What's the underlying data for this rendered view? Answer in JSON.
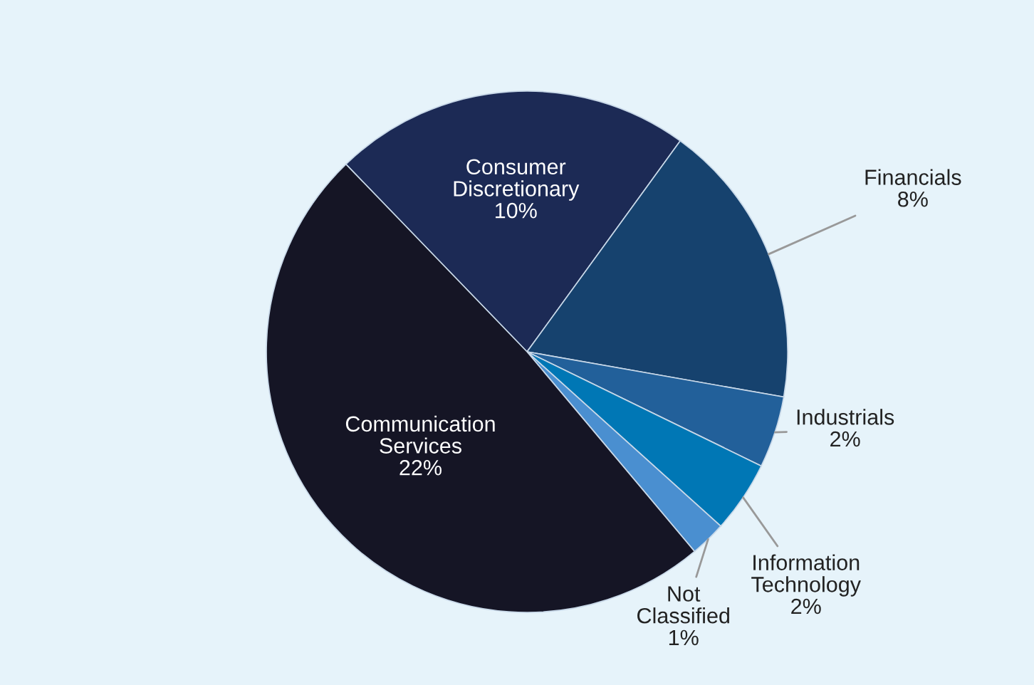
{
  "chart_data": {
    "type": "pie",
    "categories": [
      "Consumer\nDiscretionary",
      "Financials",
      "Industrials",
      "Information\nTechnology",
      "Not\nClassified",
      "Communication\nServices"
    ],
    "values": [
      10,
      8,
      2,
      2,
      1,
      22
    ],
    "value_labels": [
      "10%",
      "8%",
      "2%",
      "2%",
      "1%",
      "22%"
    ],
    "colors": [
      "#1c2a55",
      "#16426e",
      "#22609a",
      "#0077b5",
      "#4a8fd0",
      "#151525"
    ]
  }
}
